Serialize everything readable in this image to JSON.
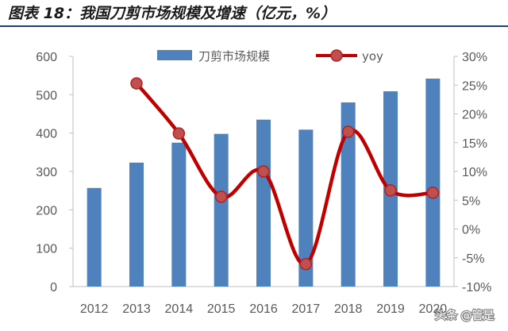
{
  "watermark": "头条 @管是",
  "colors": {
    "bar": "#4f81bd",
    "line": "#c00000",
    "marker_fill": "#c0504d",
    "marker_stroke": "#b22222",
    "axis": "#bfbfbf",
    "title_rule": "#1f3f7a"
  },
  "chart_data": {
    "type": "bar",
    "title": "图表 18：我国刀剪市场规模及增速（亿元，%）",
    "categories": [
      "2012",
      "2013",
      "2014",
      "2015",
      "2016",
      "2017",
      "2018",
      "2019",
      "2020"
    ],
    "series": [
      {
        "name": "刀剪市场规模",
        "type": "bar",
        "axis": "left",
        "values": [
          257,
          323,
          375,
          398,
          435,
          409,
          480,
          509,
          542
        ]
      },
      {
        "name": "yoy",
        "type": "line",
        "smooth": true,
        "axis": "right",
        "values": [
          null,
          25.3,
          16.6,
          5.6,
          10.0,
          -6.1,
          16.9,
          6.7,
          6.3
        ]
      }
    ],
    "ylim": [
      0,
      600
    ],
    "y_ticks": [
      "0",
      "100",
      "200",
      "300",
      "400",
      "500",
      "600"
    ],
    "y2lim": [
      -10,
      30
    ],
    "y2_ticks": [
      "-10%",
      "-5%",
      "0%",
      "5%",
      "10%",
      "15%",
      "20%",
      "25%",
      "30%"
    ],
    "legend": "top-center",
    "grid": false
  }
}
